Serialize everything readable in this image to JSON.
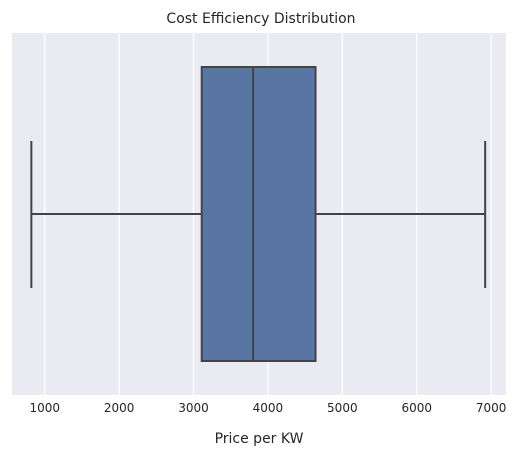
{
  "chart_data": {
    "type": "box",
    "title": "Cost Efficiency Distribution",
    "xlabel": "Price per KW",
    "ylabel": "",
    "orientation": "horizontal",
    "xlim": [
      560,
      7200
    ],
    "x_ticks": [
      1000,
      2000,
      3000,
      4000,
      5000,
      6000,
      7000
    ],
    "x_tick_labels": [
      "1000",
      "2000",
      "3000",
      "4000",
      "5000",
      "6000",
      "7000"
    ],
    "grid": true,
    "box": {
      "whisker_low": 820,
      "q1": 3110,
      "median": 3800,
      "q3": 4640,
      "whisker_high": 6920
    },
    "colors": {
      "background": "#EAEAF2",
      "grid": "#FFFFFF",
      "box_fill": "#5875A4",
      "line": "#444444"
    }
  }
}
